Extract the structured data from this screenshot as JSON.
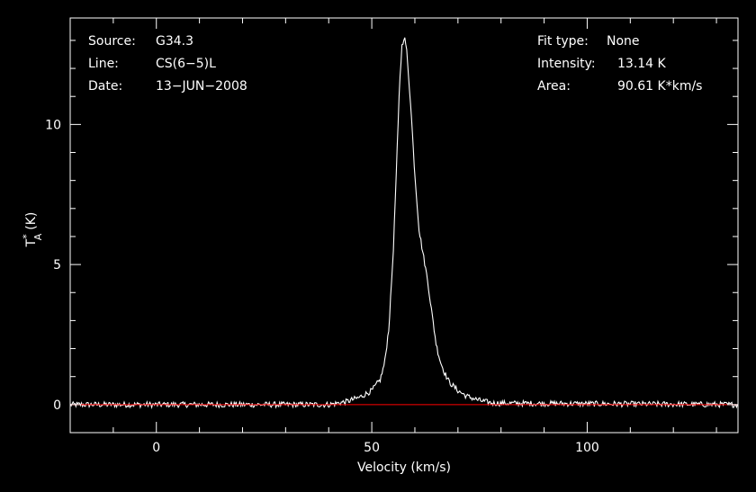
{
  "chart_data": {
    "type": "line",
    "title": "",
    "xlabel": "Velocity (km/s)",
    "ylabel_base": "T",
    "ylabel_sup": "*",
    "ylabel_sub": "A",
    "ylabel_unit": "(K)",
    "xlim": [
      -20,
      135
    ],
    "ylim": [
      -1,
      13.8
    ],
    "xticks": [
      0,
      50,
      100
    ],
    "yticks": [
      0,
      5,
      10
    ],
    "grid": false,
    "colors": {
      "background": "#000000",
      "spectrum": "#ffffff",
      "baseline": "#ff0000",
      "frame": "#ffffff"
    },
    "series": [
      {
        "role": "spectrum",
        "x": [
          -20,
          40,
          44,
          47,
          50,
          52,
          53,
          54,
          55,
          56,
          56.5,
          57,
          57.5,
          58,
          59,
          60,
          61,
          62,
          63,
          64,
          65,
          66,
          67,
          68,
          70,
          72,
          75,
          78,
          135
        ],
        "y": [
          0,
          0,
          0.1,
          0.25,
          0.5,
          0.9,
          1.5,
          2.8,
          5.5,
          9.5,
          11.6,
          12.8,
          13.14,
          12.8,
          10.8,
          8.2,
          6.2,
          5.3,
          4.4,
          3.2,
          2.1,
          1.5,
          1.1,
          0.8,
          0.5,
          0.3,
          0.15,
          0.05,
          0
        ],
        "noise": 0.1
      },
      {
        "role": "baseline",
        "x": [
          -20,
          135
        ],
        "y": [
          0,
          0
        ]
      }
    ]
  },
  "info_left": [
    {
      "label": "Source:",
      "value": "G34.3"
    },
    {
      "label": "Line:",
      "value": "CS(6−5)L"
    },
    {
      "label": "Date:",
      "value": "13−JUN−2008"
    }
  ],
  "info_right": [
    {
      "label": "Fit type:",
      "value": "None"
    },
    {
      "label": "Intensity:",
      "value": "13.14 K"
    },
    {
      "label": "Area:",
      "value": "90.61 K*km/s"
    }
  ]
}
